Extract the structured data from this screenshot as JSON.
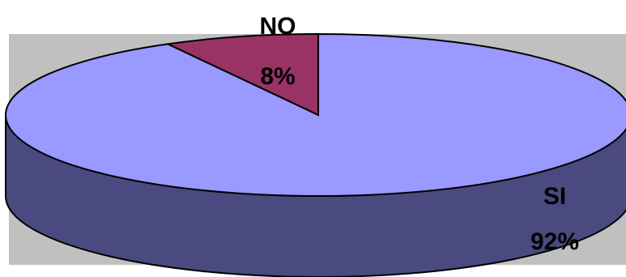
{
  "chart_data": {
    "type": "pie",
    "style": "3d",
    "slices": [
      {
        "label": "NO",
        "value": 8,
        "percent_label": "8%",
        "top_color": "#993366",
        "side_color": "#6b2347"
      },
      {
        "label": "SI",
        "value": 92,
        "percent_label": "92%",
        "top_color": "#9999ff",
        "side_color": "#4a4a80"
      }
    ],
    "plot_background": "#c0c0c0",
    "legend": "none"
  }
}
